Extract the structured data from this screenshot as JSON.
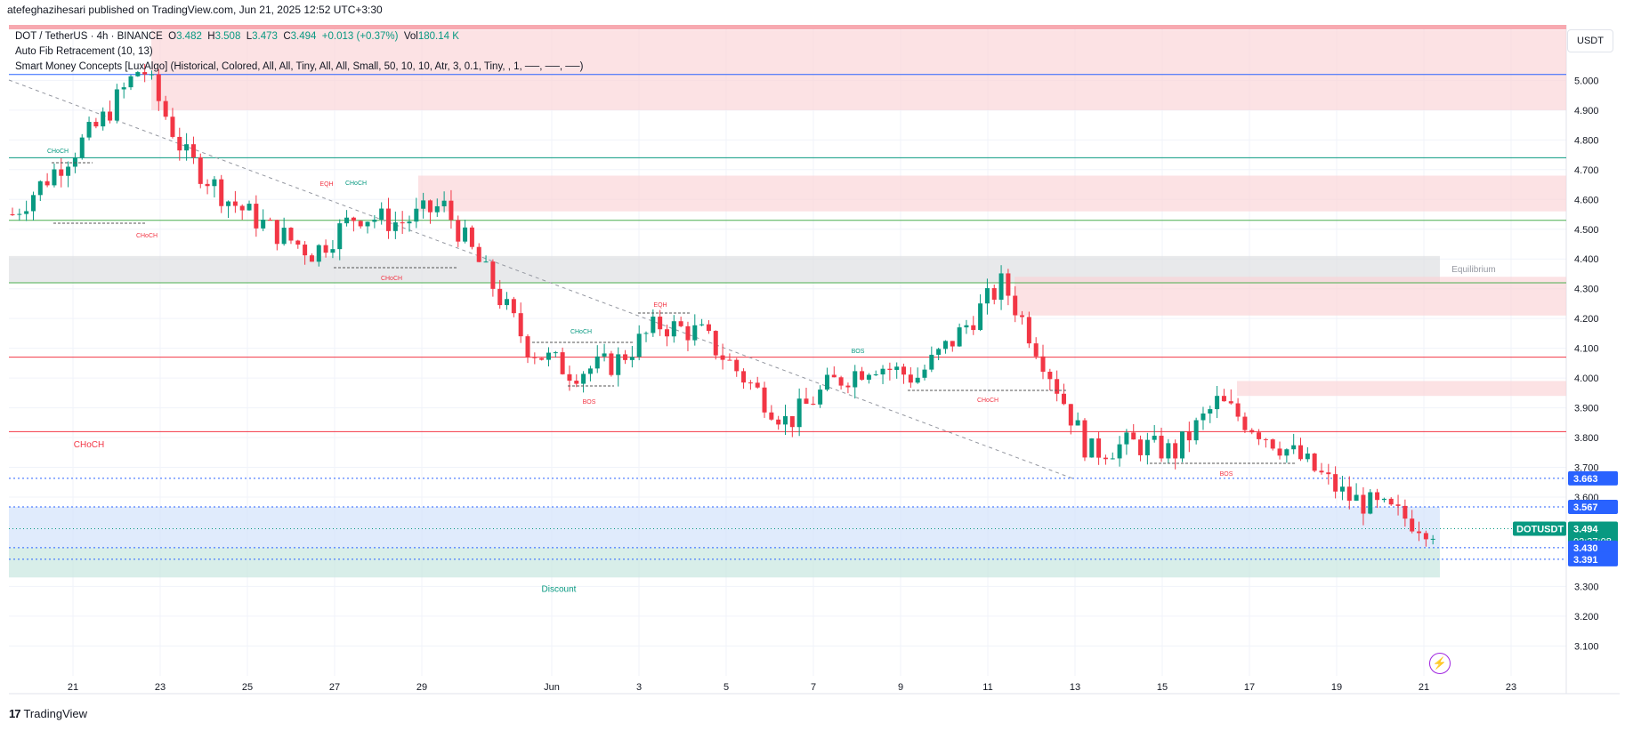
{
  "header": {
    "text": "atefeghazihesari published on TradingView.com, Jun 21, 2025 12:52 UTC+3:30"
  },
  "legend": {
    "symbol": "DOT / TetherUS · 4h · BINANCE",
    "o_label": "O",
    "o": "3.482",
    "h_label": "H",
    "h": "3.508",
    "l_label": "L",
    "l": "3.473",
    "c_label": "C",
    "c": "3.494",
    "change": "+0.013 (+0.37%)",
    "vol_label": "Vol",
    "vol": "180.14 K",
    "indicator1": "Auto Fib Retracement (10, 13)",
    "indicator2": "Smart Money Concepts [LuxAlgo] (Historical, Colored, All, All, Tiny, All, All, Small, 50, 10, 10, Atr, 3, 0.1, Tiny, , 1, ──, ──, ──)"
  },
  "footer": {
    "brand": "TradingView"
  },
  "currency": "USDT",
  "colors": {
    "up": "#089981",
    "down": "#f23645",
    "supply": "#fbd3d6",
    "demand": "#c3e5dd",
    "fib": "#cfe0fb",
    "eq": "#dcdde1"
  },
  "chart_data": {
    "type": "candlestick",
    "symbol": "DOTUSDT",
    "timeframe": "4h",
    "x_tick_labels": [
      "21",
      "23",
      "25",
      "27",
      "29",
      "Jun",
      "3",
      "5",
      "7",
      "9",
      "11",
      "13",
      "15",
      "17",
      "19",
      "21",
      "23"
    ],
    "y_ticks": [
      5.0,
      4.9,
      4.8,
      4.7,
      4.6,
      4.5,
      4.4,
      4.3,
      4.2,
      4.1,
      4.0,
      3.9,
      3.8,
      3.7,
      3.6,
      3.3,
      3.2,
      3.1
    ],
    "ylim": [
      3.02,
      5.17
    ],
    "price_labels": [
      {
        "value": 3.663,
        "text": "3.663",
        "color": "#2962ff"
      },
      {
        "value": 3.567,
        "text": "3.567",
        "color": "#2962ff"
      },
      {
        "value": 3.494,
        "text": "3.494",
        "color": "#089981",
        "symbol": "DOTUSDT",
        "countdown": "02:37:08"
      },
      {
        "value": 3.43,
        "text": "3.430",
        "color": "#2962ff"
      },
      {
        "value": 3.391,
        "text": "3.391",
        "color": "#2962ff"
      }
    ],
    "close_series": [
      {
        "date": "May 20",
        "close": 4.55
      },
      {
        "date": "May 21",
        "close": 4.7
      },
      {
        "date": "May 22",
        "close": 4.85
      },
      {
        "date": "May 23",
        "close": 5.05
      },
      {
        "date": "May 23",
        "close": 4.75
      },
      {
        "date": "May 24",
        "close": 4.6
      },
      {
        "date": "May 25",
        "close": 4.5
      },
      {
        "date": "May 26",
        "close": 4.42
      },
      {
        "date": "May 27",
        "close": 4.55
      },
      {
        "date": "May 28",
        "close": 4.52
      },
      {
        "date": "May 29",
        "close": 4.58
      },
      {
        "date": "May 30",
        "close": 4.35
      },
      {
        "date": "May 31",
        "close": 4.1
      },
      {
        "date": "Jun 1",
        "close": 4.02
      },
      {
        "date": "Jun 2",
        "close": 4.05
      },
      {
        "date": "Jun 3",
        "close": 4.18
      },
      {
        "date": "Jun 4",
        "close": 4.15
      },
      {
        "date": "Jun 5",
        "close": 4.0
      },
      {
        "date": "Jun 6",
        "close": 3.85
      },
      {
        "date": "Jun 7",
        "close": 3.98
      },
      {
        "date": "Jun 8",
        "close": 4.05
      },
      {
        "date": "Jun 9",
        "close": 4.0
      },
      {
        "date": "Jun 10",
        "close": 4.15
      },
      {
        "date": "Jun 11",
        "close": 4.32
      },
      {
        "date": "Jun 12",
        "close": 4.05
      },
      {
        "date": "Jun 13",
        "close": 3.75
      },
      {
        "date": "Jun 14",
        "close": 3.78
      },
      {
        "date": "Jun 15",
        "close": 3.75
      },
      {
        "date": "Jun 16",
        "close": 3.92
      },
      {
        "date": "Jun 17",
        "close": 3.82
      },
      {
        "date": "Jun 18",
        "close": 3.72
      },
      {
        "date": "Jun 19",
        "close": 3.6
      },
      {
        "date": "Jun 20",
        "close": 3.55
      },
      {
        "date": "Jun 21",
        "close": 3.494
      }
    ],
    "zones": [
      {
        "label": "",
        "type": "supply",
        "from": 4.9,
        "to": 5.17
      },
      {
        "label": "",
        "type": "supply",
        "from": 4.56,
        "to": 4.68
      },
      {
        "label": "Equilibrium",
        "type": "equilibrium",
        "from": 4.32,
        "to": 4.41
      },
      {
        "label": "",
        "type": "supply",
        "from": 4.21,
        "to": 4.34
      },
      {
        "label": "",
        "type": "supply",
        "from": 3.94,
        "to": 3.99
      },
      {
        "label": "",
        "type": "fib",
        "from": 3.43,
        "to": 3.567
      },
      {
        "label": "Discount",
        "type": "discount",
        "from": 3.33,
        "to": 3.43
      }
    ],
    "horizontal_levels": [
      {
        "value": 5.02,
        "color": "#2962ff"
      },
      {
        "value": 4.74,
        "color": "#089981"
      },
      {
        "value": 4.53,
        "color": "#4caf50"
      },
      {
        "value": 4.32,
        "color": "#4caf50"
      },
      {
        "value": 4.07,
        "color": "#f23645"
      },
      {
        "value": 3.82,
        "color": "#f23645"
      }
    ],
    "annotations": [
      "CHoCH",
      "CHoCH",
      "EQH",
      "CHoCH",
      "CHoCH",
      "CHoCH",
      "EQH",
      "BOS",
      "BOS",
      "CHoCH",
      "BOS",
      "CHoCH"
    ]
  }
}
